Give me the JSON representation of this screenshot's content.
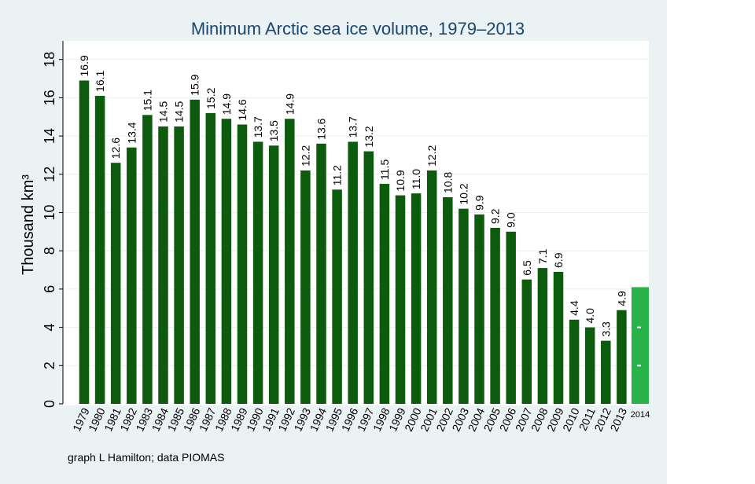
{
  "chart_data": {
    "type": "bar",
    "title": "Minimum Arctic sea ice volume, 1979–2013",
    "ylabel": "Thousand km³",
    "xlabel": "",
    "ylim": [
      0,
      18
    ],
    "yticks": [
      0,
      2,
      4,
      6,
      8,
      10,
      12,
      14,
      16,
      18
    ],
    "grid": true,
    "categories": [
      "1979",
      "1980",
      "1981",
      "1982",
      "1983",
      "1984",
      "1985",
      "1986",
      "1987",
      "1988",
      "1989",
      "1990",
      "1991",
      "1992",
      "1993",
      "1994",
      "1995",
      "1996",
      "1997",
      "1998",
      "1999",
      "2000",
      "2001",
      "2002",
      "2003",
      "2004",
      "2005",
      "2006",
      "2007",
      "2008",
      "2009",
      "2010",
      "2011",
      "2012",
      "2013"
    ],
    "values": [
      16.9,
      16.1,
      12.6,
      13.4,
      15.1,
      14.5,
      14.5,
      15.9,
      15.2,
      14.9,
      14.6,
      13.7,
      13.5,
      14.9,
      12.2,
      13.6,
      11.2,
      13.7,
      13.2,
      11.5,
      10.9,
      11.0,
      12.2,
      10.8,
      10.2,
      9.9,
      9.2,
      9.0,
      6.5,
      7.1,
      6.9,
      4.4,
      4.0,
      3.3,
      4.9
    ],
    "data_labels": [
      "16.9",
      "16.1",
      "12.6",
      "13.4",
      "15.1",
      "14.5",
      "14.5",
      "15.9",
      "15.2",
      "14.9",
      "14.6",
      "13.7",
      "13.5",
      "14.9",
      "12.2",
      "13.6",
      "11.2",
      "13.7",
      "13.2",
      "11.5",
      "10.9",
      "11.0",
      "12.2",
      "10.8",
      "10.2",
      "9.9",
      "9.2",
      "9.0",
      "6.5",
      "7.1",
      "6.9",
      "4.4",
      "4.0",
      "3.3",
      "4.9"
    ],
    "extra_bar": {
      "category": "2014",
      "value": 6.1,
      "color": "#27b34a"
    },
    "bar_color": "#0d5c0d",
    "title_color": "#1a476f"
  },
  "note": "graph L Hamilton;  data PIOMAS"
}
